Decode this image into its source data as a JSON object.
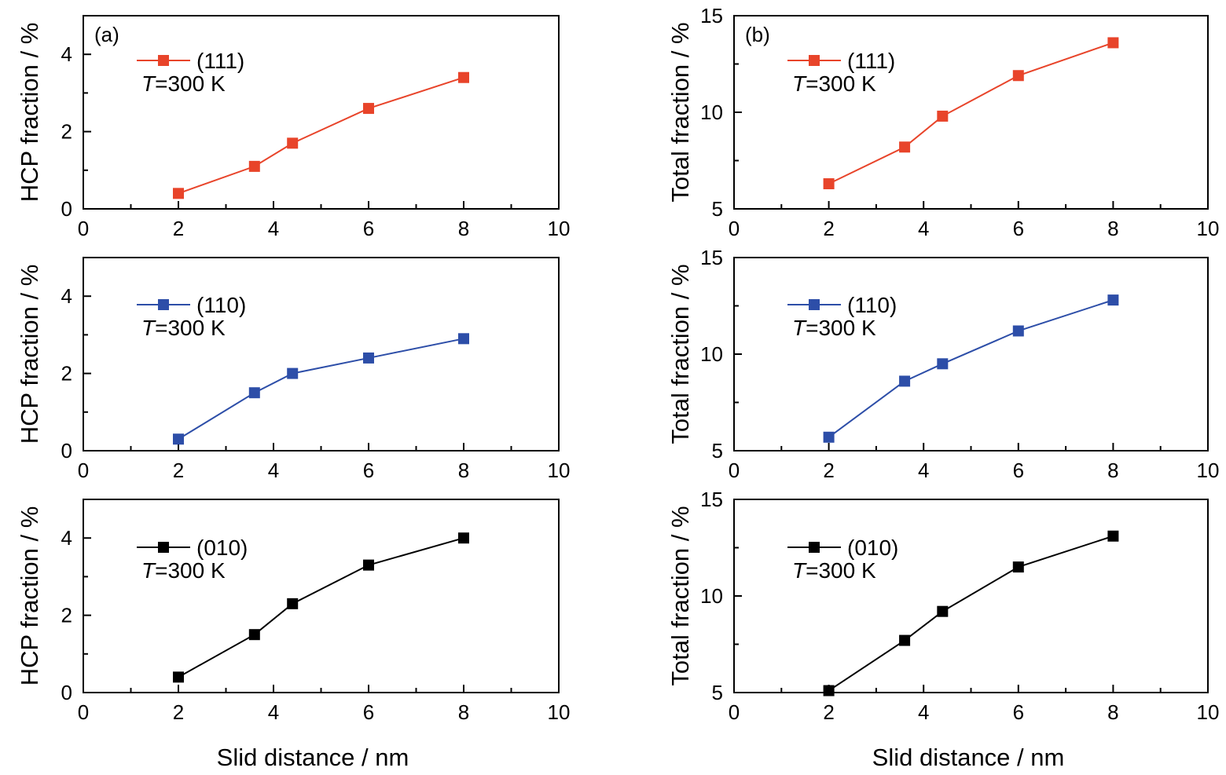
{
  "figure": {
    "xlabel_left": "Slid distance / nm",
    "xlabel_right": "Slid distance / nm"
  },
  "chart_data": [
    {
      "type": "line",
      "panel_tag": "(a)",
      "xlabel": "",
      "ylabel": "HCP fraction / %",
      "xlim": [
        0,
        10
      ],
      "ylim": [
        0,
        5
      ],
      "xticks": [
        "0",
        "2",
        "4",
        "6",
        "8",
        "10"
      ],
      "yticks": [
        "0",
        "2",
        "4"
      ],
      "series": [
        {
          "name": "(111)",
          "color": "#e8442a",
          "x": [
            2,
            3.6,
            4.4,
            6,
            8
          ],
          "y": [
            0.4,
            1.1,
            1.7,
            2.6,
            3.4
          ]
        }
      ],
      "annotation": {
        "italic": "T",
        "text": "=300 K"
      }
    },
    {
      "type": "line",
      "panel_tag": "(b)",
      "xlabel": "",
      "ylabel": "Total fraction / %",
      "xlim": [
        0,
        10
      ],
      "ylim": [
        5,
        15
      ],
      "xticks": [
        "0",
        "2",
        "4",
        "6",
        "8",
        "10"
      ],
      "yticks": [
        "5",
        "10",
        "15"
      ],
      "series": [
        {
          "name": "(111)",
          "color": "#e8442a",
          "x": [
            2,
            3.6,
            4.4,
            6,
            8
          ],
          "y": [
            6.3,
            8.2,
            9.8,
            11.9,
            13.6
          ]
        }
      ],
      "annotation": {
        "italic": "T",
        "text": "=300 K"
      }
    },
    {
      "type": "line",
      "panel_tag": "",
      "xlabel": "",
      "ylabel": "HCP fraction / %",
      "xlim": [
        0,
        10
      ],
      "ylim": [
        0,
        5
      ],
      "xticks": [
        "0",
        "2",
        "4",
        "6",
        "8",
        "10"
      ],
      "yticks": [
        "0",
        "2",
        "4"
      ],
      "series": [
        {
          "name": "(110)",
          "color": "#2d4ea8",
          "x": [
            2,
            3.6,
            4.4,
            6,
            8
          ],
          "y": [
            0.3,
            1.5,
            2.0,
            2.4,
            2.9
          ]
        }
      ],
      "annotation": {
        "italic": "T",
        "text": "=300 K"
      }
    },
    {
      "type": "line",
      "panel_tag": "",
      "xlabel": "",
      "ylabel": "Total fraction / %",
      "xlim": [
        0,
        10
      ],
      "ylim": [
        5,
        15
      ],
      "xticks": [
        "0",
        "2",
        "4",
        "6",
        "8",
        "10"
      ],
      "yticks": [
        "5",
        "10",
        "15"
      ],
      "series": [
        {
          "name": "(110)",
          "color": "#2d4ea8",
          "x": [
            2,
            3.6,
            4.4,
            6,
            8
          ],
          "y": [
            5.7,
            8.6,
            9.5,
            11.2,
            12.8
          ]
        }
      ],
      "annotation": {
        "italic": "T",
        "text": "=300 K"
      }
    },
    {
      "type": "line",
      "panel_tag": "",
      "xlabel": "",
      "ylabel": "HCP fraction / %",
      "xlim": [
        0,
        10
      ],
      "ylim": [
        0,
        5
      ],
      "xticks": [
        "0",
        "2",
        "4",
        "6",
        "8",
        "10"
      ],
      "yticks": [
        "0",
        "2",
        "4"
      ],
      "series": [
        {
          "name": "(010)",
          "color": "#000000",
          "x": [
            2,
            3.6,
            4.4,
            6,
            8
          ],
          "y": [
            0.4,
            1.5,
            2.3,
            3.3,
            4.0
          ]
        }
      ],
      "annotation": {
        "italic": "T",
        "text": "=300 K"
      }
    },
    {
      "type": "line",
      "panel_tag": "",
      "xlabel": "",
      "ylabel": "Total fraction / %",
      "xlim": [
        0,
        10
      ],
      "ylim": [
        5,
        15
      ],
      "xticks": [
        "0",
        "2",
        "4",
        "6",
        "8",
        "10"
      ],
      "yticks": [
        "5",
        "10",
        "15"
      ],
      "series": [
        {
          "name": "(010)",
          "color": "#000000",
          "x": [
            2,
            3.6,
            4.4,
            6,
            8
          ],
          "y": [
            5.1,
            7.7,
            9.2,
            11.5,
            13.1
          ]
        }
      ],
      "annotation": {
        "italic": "T",
        "text": "=300 K"
      }
    }
  ]
}
